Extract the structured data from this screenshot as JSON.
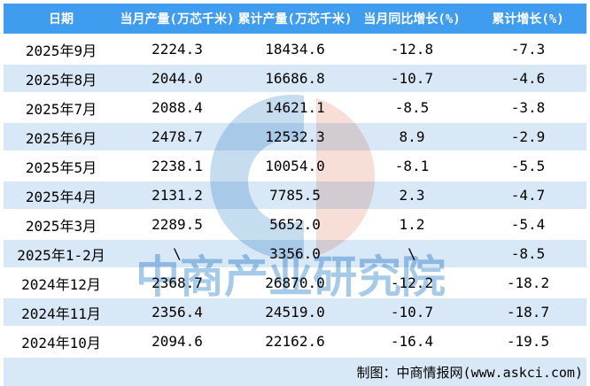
{
  "table": {
    "columns": [
      "日期",
      "当月产量(万芯千米)",
      "累计产量(万芯千米)",
      "当月同比增长(%)",
      "累计增长(%)"
    ],
    "rows": [
      [
        "2025年9月",
        "2224.3",
        "18434.6",
        "-12.8",
        "-7.3"
      ],
      [
        "2025年8月",
        "2044.0",
        "16686.8",
        "-10.7",
        "-4.6"
      ],
      [
        "2025年7月",
        "2088.4",
        "14621.1",
        "-8.5",
        "-3.8"
      ],
      [
        "2025年6月",
        "2478.7",
        "12532.3",
        "8.9",
        "-2.9"
      ],
      [
        "2025年5月",
        "2238.1",
        "10054.0",
        "-8.1",
        "-5.5"
      ],
      [
        "2025年4月",
        "2131.2",
        "7785.5",
        "2.3",
        "-4.7"
      ],
      [
        "2025年3月",
        "2289.5",
        "5652.0",
        "1.2",
        "-5.4"
      ],
      [
        "2025年1-2月",
        "\\",
        "3356.0",
        "\\",
        "-8.5"
      ],
      [
        "2024年12月",
        "2368.7",
        "26870.0",
        "-12.2",
        "-18.2"
      ],
      [
        "2024年11月",
        "2356.4",
        "24519.0",
        "-10.7",
        "-18.7"
      ],
      [
        "2024年10月",
        "2094.6",
        "22162.6",
        "-16.4",
        "-19.5"
      ]
    ]
  },
  "chart_data": {
    "type": "table",
    "categories": [
      "2025年9月",
      "2025年8月",
      "2025年7月",
      "2025年6月",
      "2025年5月",
      "2025年4月",
      "2025年3月",
      "2025年1-2月",
      "2024年12月",
      "2024年11月",
      "2024年10月"
    ],
    "series": [
      {
        "name": "当月产量(万芯千米)",
        "values": [
          2224.3,
          2044.0,
          2088.4,
          2478.7,
          2238.1,
          2131.2,
          2289.5,
          null,
          2368.7,
          2356.4,
          2094.6
        ]
      },
      {
        "name": "累计产量(万芯千米)",
        "values": [
          18434.6,
          16686.8,
          14621.1,
          12532.3,
          10054.0,
          7785.5,
          5652.0,
          3356.0,
          26870.0,
          24519.0,
          22162.6
        ]
      },
      {
        "name": "当月同比增长(%)",
        "values": [
          -12.8,
          -10.7,
          -8.5,
          8.9,
          -8.1,
          2.3,
          1.2,
          null,
          -12.2,
          -10.7,
          -16.4
        ]
      },
      {
        "name": "累计增长(%)",
        "values": [
          -7.3,
          -4.6,
          -3.8,
          -2.9,
          -5.5,
          -4.7,
          -5.4,
          -8.5,
          -18.2,
          -18.7,
          -19.5
        ]
      }
    ]
  },
  "watermark": {
    "text": "中商产业研究院",
    "logo": "ci-logo"
  },
  "footer": {
    "credit": "制图：中商情报网(www.askci.com)"
  },
  "colors": {
    "header_bg": "#3F9CEF",
    "stripe_bg": "#D9E8F7",
    "watermark_text_blue": "#A6CBE9",
    "logo_blue": "#C6DDEF",
    "logo_pink": "#F7DFD8",
    "text_black": "#000000",
    "header_text": "#FFFFFF"
  }
}
